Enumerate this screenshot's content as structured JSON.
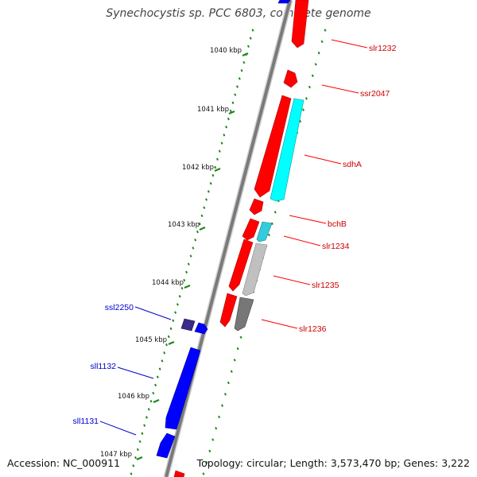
{
  "title": "Synechocystis sp. PCC 6803, complete genome",
  "accession": "Accession: NC_000911",
  "summary": "Topology: circular; Length: 3,573,470 bp; Genes: 3,222",
  "colors": {
    "backbone": "#808080",
    "ruler": "#1a8a1a",
    "forward_gene": "#ff0000",
    "reverse_gene": "#0000ff",
    "forward_label": "#cc0000",
    "reverse_label": "#0000cc"
  },
  "ruler": {
    "kbp_labels": [
      "1040 kbp",
      "1041 kbp",
      "1042 kbp",
      "1043 kbp",
      "1044 kbp",
      "1045 kbp",
      "1046 kbp",
      "1047 kbp"
    ]
  },
  "genes": [
    {
      "name": "slr1232",
      "strand": "forward"
    },
    {
      "name": "ssr2047",
      "strand": "forward"
    },
    {
      "name": "sdhA",
      "strand": "forward"
    },
    {
      "name": "bchB",
      "strand": "forward"
    },
    {
      "name": "slr1234",
      "strand": "forward"
    },
    {
      "name": "slr1235",
      "strand": "forward"
    },
    {
      "name": "slr1236",
      "strand": "forward"
    },
    {
      "name": "ssl2250",
      "strand": "reverse"
    },
    {
      "name": "sll1132",
      "strand": "reverse"
    },
    {
      "name": "sll1131",
      "strand": "reverse"
    }
  ]
}
